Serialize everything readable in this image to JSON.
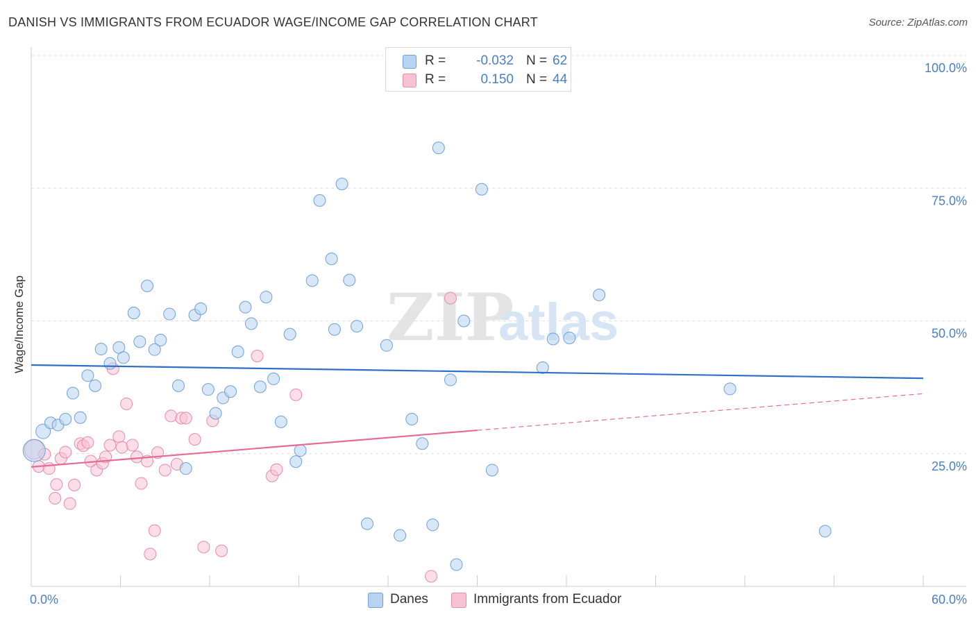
{
  "header": {
    "title": "DANISH VS IMMIGRANTS FROM ECUADOR WAGE/INCOME GAP CORRELATION CHART",
    "source": "Source: ZipAtlas.com"
  },
  "watermark": {
    "zip": "ZIP",
    "atlas": "atlas"
  },
  "legend": {
    "rows": [
      {
        "r_label": "R =",
        "r_value": "-0.032",
        "n_label": "N =",
        "n_value": "62"
      },
      {
        "r_label": "R =",
        "r_value": "0.150",
        "n_label": "N =",
        "n_value": "44"
      }
    ]
  },
  "bottom_legend": {
    "series_a": "Danes",
    "series_b": "Immigrants from Ecuador"
  },
  "colors": {
    "danes_fill": "#b8d3f2",
    "danes_stroke": "#6e9fd8",
    "danes_line": "#2f6fc4",
    "ecuador_fill": "#f7c3d3",
    "ecuador_stroke": "#e88aa8",
    "ecuador_line": "#e46b95",
    "axis_label": "#4a7fc1",
    "grid": "#dddddd"
  },
  "chart_data": {
    "type": "scatter",
    "title": "DANISH VS IMMIGRANTS FROM ECUADOR WAGE/INCOME GAP CORRELATION CHART",
    "xlabel": "",
    "ylabel": "Wage/Income Gap",
    "xlim": [
      0,
      60
    ],
    "ylim": [
      0,
      100
    ],
    "x_tick_labels": {
      "0": "0.0%",
      "60": "60.0%"
    },
    "y_ticks": [
      {
        "value": 25,
        "label": "25.0%"
      },
      {
        "value": 50,
        "label": "50.0%"
      },
      {
        "value": 75,
        "label": "75.0%"
      },
      {
        "value": 100,
        "label": "100.0%"
      }
    ],
    "grid": "horizontal dashed",
    "series": [
      {
        "name": "Danes",
        "points": [
          [
            0.2,
            25.6
          ],
          [
            0.8,
            29.2
          ],
          [
            1.3,
            30.8
          ],
          [
            1.8,
            30.4
          ],
          [
            2.3,
            31.5
          ],
          [
            2.8,
            36.4
          ],
          [
            3.3,
            31.8
          ],
          [
            3.8,
            39.7
          ],
          [
            4.3,
            37.8
          ],
          [
            4.7,
            44.7
          ],
          [
            5.3,
            42.0
          ],
          [
            5.9,
            45.0
          ],
          [
            6.2,
            43.1
          ],
          [
            6.9,
            51.5
          ],
          [
            7.3,
            46.1
          ],
          [
            7.8,
            56.6
          ],
          [
            8.3,
            44.6
          ],
          [
            8.7,
            46.4
          ],
          [
            9.3,
            51.3
          ],
          [
            9.9,
            37.8
          ],
          [
            10.4,
            22.2
          ],
          [
            11.0,
            51.1
          ],
          [
            11.4,
            52.3
          ],
          [
            11.9,
            37.1
          ],
          [
            12.4,
            32.6
          ],
          [
            12.9,
            35.5
          ],
          [
            13.4,
            36.7
          ],
          [
            13.9,
            44.2
          ],
          [
            14.4,
            52.6
          ],
          [
            14.8,
            49.5
          ],
          [
            15.4,
            37.6
          ],
          [
            15.8,
            54.5
          ],
          [
            16.3,
            39.1
          ],
          [
            16.8,
            31.0
          ],
          [
            17.4,
            47.5
          ],
          [
            17.8,
            23.5
          ],
          [
            18.1,
            25.6
          ],
          [
            18.9,
            57.6
          ],
          [
            19.4,
            72.7
          ],
          [
            20.2,
            61.7
          ],
          [
            20.4,
            48.4
          ],
          [
            20.9,
            75.8
          ],
          [
            21.4,
            57.7
          ],
          [
            21.9,
            49.0
          ],
          [
            22.6,
            11.8
          ],
          [
            23.9,
            45.4
          ],
          [
            24.8,
            9.6
          ],
          [
            25.6,
            31.5
          ],
          [
            26.3,
            26.9
          ],
          [
            27.0,
            11.6
          ],
          [
            27.4,
            82.6
          ],
          [
            28.2,
            38.9
          ],
          [
            28.6,
            4.1
          ],
          [
            29.1,
            50.0
          ],
          [
            30.3,
            74.8
          ],
          [
            31.0,
            21.9
          ],
          [
            34.4,
            41.2
          ],
          [
            35.1,
            46.6
          ],
          [
            36.2,
            46.8
          ],
          [
            38.2,
            54.9
          ],
          [
            47.0,
            37.2
          ],
          [
            53.4,
            10.4
          ]
        ],
        "trend": {
          "x": [
            0,
            60
          ],
          "y": [
            41.7,
            39.2
          ]
        }
      },
      {
        "name": "Immigrants from Ecuador",
        "points": [
          [
            0.2,
            25.8
          ],
          [
            0.5,
            22.6
          ],
          [
            0.9,
            24.9
          ],
          [
            1.2,
            22.2
          ],
          [
            1.6,
            16.6
          ],
          [
            1.7,
            19.2
          ],
          [
            2.0,
            24.1
          ],
          [
            2.3,
            25.3
          ],
          [
            2.6,
            15.6
          ],
          [
            2.9,
            19.1
          ],
          [
            3.3,
            26.9
          ],
          [
            3.5,
            26.5
          ],
          [
            3.8,
            27.1
          ],
          [
            4.0,
            23.6
          ],
          [
            4.4,
            21.9
          ],
          [
            4.8,
            23.2
          ],
          [
            5.0,
            24.4
          ],
          [
            5.3,
            26.6
          ],
          [
            5.5,
            41.0
          ],
          [
            5.9,
            28.2
          ],
          [
            6.1,
            26.2
          ],
          [
            6.4,
            34.4
          ],
          [
            6.8,
            26.6
          ],
          [
            7.1,
            24.4
          ],
          [
            7.4,
            19.4
          ],
          [
            7.8,
            23.6
          ],
          [
            8.0,
            6.1
          ],
          [
            8.3,
            10.5
          ],
          [
            8.5,
            25.2
          ],
          [
            9.0,
            21.9
          ],
          [
            9.4,
            32.1
          ],
          [
            9.8,
            23.0
          ],
          [
            10.1,
            31.7
          ],
          [
            10.4,
            31.7
          ],
          [
            11.0,
            27.7
          ],
          [
            11.6,
            7.4
          ],
          [
            12.2,
            31.2
          ],
          [
            12.8,
            6.7
          ],
          [
            15.2,
            43.4
          ],
          [
            16.2,
            20.8
          ],
          [
            16.5,
            22.0
          ],
          [
            17.8,
            36.1
          ],
          [
            26.9,
            1.9
          ],
          [
            28.2,
            54.3
          ]
        ],
        "trend": {
          "x": [
            0,
            60
          ],
          "y": [
            22.5,
            36.3
          ],
          "solid_until_x": 30
        }
      }
    ]
  }
}
